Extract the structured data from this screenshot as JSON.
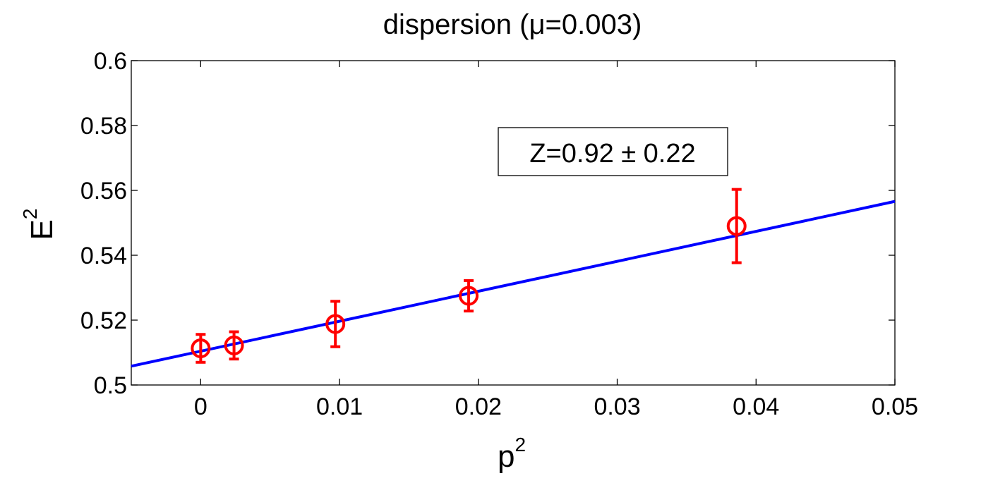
{
  "chart_data": {
    "type": "scatter",
    "title": "dispersion  (μ=0.003)",
    "xlabel": {
      "base": "p",
      "sup": "2"
    },
    "ylabel": {
      "base": "E",
      "sup": "2"
    },
    "xlim": [
      -0.005,
      0.05
    ],
    "ylim": [
      0.5,
      0.6
    ],
    "xticks": [
      0,
      0.01,
      0.02,
      0.03,
      0.04,
      0.05
    ],
    "xtick_labels": [
      "0",
      "0.01",
      "0.02",
      "0.03",
      "0.04",
      "0.05"
    ],
    "yticks": [
      0.5,
      0.52,
      0.54,
      0.56,
      0.58,
      0.6
    ],
    "ytick_labels": [
      "0.5",
      "0.52",
      "0.54",
      "0.56",
      "0.58",
      "0.6"
    ],
    "grid": false,
    "annotation": "Z=0.92 ± 0.22",
    "series": [
      {
        "marker": "circle",
        "color": "#ff0000",
        "points": [
          {
            "x": 0.0,
            "y": 0.5113,
            "err": 0.0043
          },
          {
            "x": 0.0024,
            "y": 0.5122,
            "err": 0.0042
          },
          {
            "x": 0.0097,
            "y": 0.5188,
            "err": 0.007
          },
          {
            "x": 0.0193,
            "y": 0.5275,
            "err": 0.0047
          },
          {
            "x": 0.0386,
            "y": 0.549,
            "err": 0.0113
          }
        ]
      },
      {
        "type": "line",
        "color": "#0000ff",
        "x": [
          -0.005,
          0.05
        ],
        "y": [
          0.5058,
          0.5566
        ]
      }
    ]
  }
}
